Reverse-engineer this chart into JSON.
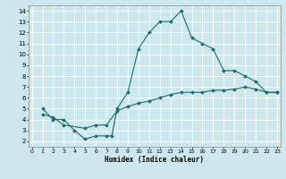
{
  "xlabel": "Humidex (Indice chaleur)",
  "bg_color": "#cce8ee",
  "grid_color": "#ffffff",
  "line_color": "#1a6b6b",
  "line1_x": [
    1,
    2,
    3,
    4,
    5,
    6,
    7,
    7.5,
    8,
    9,
    10,
    11,
    12,
    13,
    14,
    15,
    16,
    17,
    18,
    19,
    20,
    21,
    22,
    23
  ],
  "line1_y": [
    5.0,
    4.0,
    4.0,
    3.0,
    2.2,
    2.5,
    2.5,
    2.5,
    5.0,
    6.5,
    10.5,
    12.0,
    13.0,
    13.0,
    14.0,
    11.5,
    11.0,
    10.5,
    8.5,
    8.5,
    8.0,
    7.5,
    6.5,
    6.5
  ],
  "line2_x": [
    1,
    2,
    3,
    5,
    6,
    7,
    8,
    9,
    10,
    11,
    12,
    13,
    14,
    15,
    16,
    17,
    18,
    19,
    20,
    21,
    22,
    23
  ],
  "line2_y": [
    4.5,
    4.2,
    3.5,
    3.2,
    3.5,
    3.5,
    4.8,
    5.2,
    5.5,
    5.7,
    6.0,
    6.3,
    6.5,
    6.5,
    6.5,
    6.7,
    6.7,
    6.8,
    7.0,
    6.8,
    6.5,
    6.5
  ],
  "xlim": [
    -0.3,
    23.3
  ],
  "ylim": [
    1.5,
    14.5
  ],
  "xticks": [
    0,
    1,
    2,
    3,
    4,
    5,
    6,
    7,
    8,
    9,
    10,
    11,
    12,
    13,
    14,
    15,
    16,
    17,
    18,
    19,
    20,
    21,
    22,
    23
  ],
  "yticks": [
    2,
    3,
    4,
    5,
    6,
    7,
    8,
    9,
    10,
    11,
    12,
    13,
    14
  ]
}
